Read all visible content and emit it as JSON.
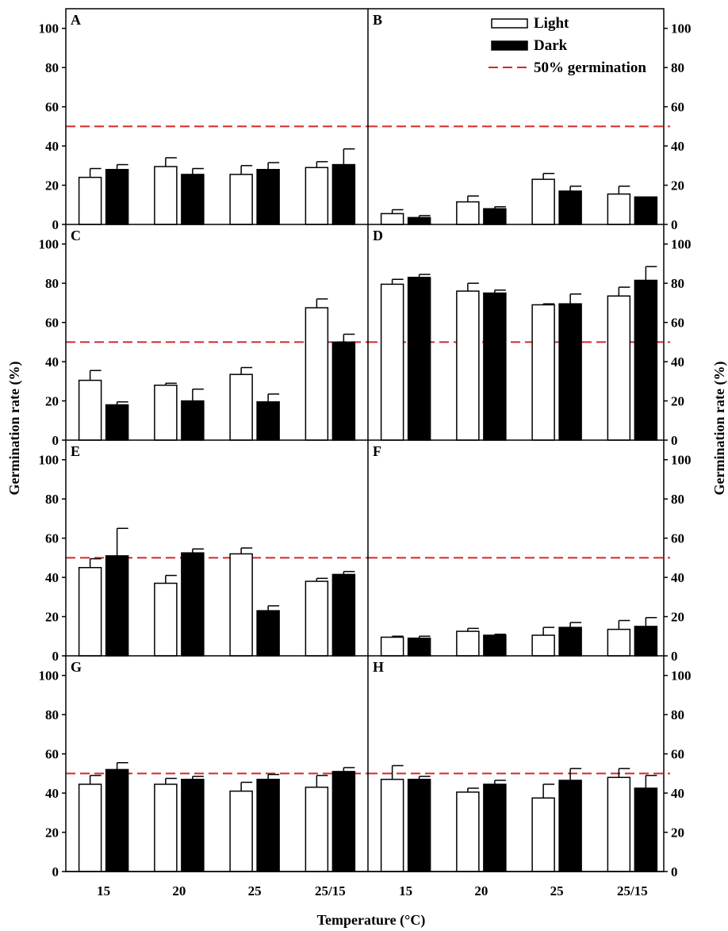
{
  "chart_data": {
    "type": "bar",
    "xlabel": "Temperature (°C)",
    "ylabel": "Germination rate (%)",
    "ylim": [
      0,
      110
    ],
    "yticks": [
      0,
      20,
      40,
      60,
      80,
      100
    ],
    "categories": [
      "15",
      "20",
      "25",
      "25/15"
    ],
    "reference_line": {
      "label": "50% germination",
      "value": 50,
      "color": "#d62728"
    },
    "legend": {
      "placement": "top-right",
      "entries": [
        "Light",
        "Dark",
        "50% germination"
      ]
    },
    "series_colors": {
      "Light": "#ffffff",
      "Dark": "#000000"
    },
    "panels": [
      {
        "label": "A",
        "light": [
          24,
          29.5,
          25.5,
          29
        ],
        "light_err": [
          4.5,
          4.5,
          4.5,
          3
        ],
        "dark": [
          28,
          25.5,
          28,
          30.5
        ],
        "dark_err": [
          2.5,
          3,
          3.5,
          8
        ]
      },
      {
        "label": "B",
        "light": [
          5.5,
          11.5,
          23,
          15.5
        ],
        "light_err": [
          2,
          3,
          3,
          4
        ],
        "dark": [
          3.5,
          8,
          17,
          14
        ],
        "dark_err": [
          1,
          1,
          2.5,
          0
        ]
      },
      {
        "label": "C",
        "light": [
          30.5,
          28,
          33.5,
          67.5
        ],
        "light_err": [
          5,
          1,
          3.5,
          4.5
        ],
        "dark": [
          18,
          20,
          19.5,
          50
        ],
        "dark_err": [
          1.5,
          6,
          4,
          4
        ]
      },
      {
        "label": "D",
        "light": [
          79.5,
          76,
          69,
          73.5
        ],
        "light_err": [
          2.5,
          4,
          0.5,
          4.5
        ],
        "dark": [
          83,
          75,
          69.5,
          81.5
        ],
        "dark_err": [
          1.5,
          1.5,
          5,
          7
        ]
      },
      {
        "label": "E",
        "light": [
          45,
          37,
          52,
          38
        ],
        "light_err": [
          4.5,
          4,
          3,
          1.5
        ],
        "dark": [
          51,
          52.5,
          23,
          41.5
        ],
        "dark_err": [
          14,
          2,
          2.5,
          1.5
        ]
      },
      {
        "label": "F",
        "light": [
          9.5,
          12.5,
          10.5,
          13.5
        ],
        "light_err": [
          0.5,
          1.5,
          4,
          4.5
        ],
        "dark": [
          9,
          10.5,
          14.5,
          15
        ],
        "dark_err": [
          1,
          0.5,
          2.5,
          4.5
        ]
      },
      {
        "label": "G",
        "light": [
          44.5,
          44.5,
          41,
          43
        ],
        "light_err": [
          4.5,
          3,
          4.5,
          6
        ],
        "dark": [
          52,
          47,
          47,
          51
        ],
        "dark_err": [
          3.5,
          1.5,
          2.5,
          2
        ]
      },
      {
        "label": "H",
        "light": [
          47,
          40.5,
          37.5,
          48
        ],
        "light_err": [
          7,
          2,
          7,
          4.5
        ],
        "dark": [
          47,
          44.5,
          46.5,
          42.5
        ],
        "dark_err": [
          1.5,
          2,
          6,
          6.5
        ]
      }
    ]
  }
}
